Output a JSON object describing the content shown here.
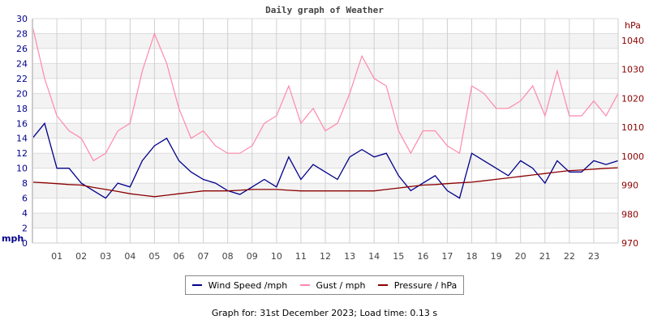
{
  "chart_data": {
    "type": "line",
    "title": "Daily graph of Weather",
    "x_tick_labels": [
      "01",
      "02",
      "03",
      "04",
      "05",
      "06",
      "07",
      "08",
      "09",
      "10",
      "11",
      "12",
      "13",
      "14",
      "15",
      "16",
      "17",
      "18",
      "19",
      "20",
      "21",
      "22",
      "23"
    ],
    "xlim_hours": [
      0,
      24
    ],
    "y_left": {
      "label": "mph",
      "ylim": [
        0,
        30
      ],
      "ticks": [
        0,
        2,
        4,
        6,
        8,
        10,
        12,
        14,
        16,
        18,
        20,
        22,
        24,
        26,
        28,
        30
      ],
      "color": "#00008b"
    },
    "y_right": {
      "label": "hPa",
      "ylim": [
        970,
        1047.5
      ],
      "ticks": [
        970,
        980,
        990,
        1000,
        1010,
        1020,
        1030,
        1040
      ],
      "color": "#8b0000"
    },
    "grid": true,
    "hours": [
      0,
      0.5,
      1,
      1.5,
      2,
      2.5,
      3,
      3.5,
      4,
      4.5,
      5,
      5.5,
      6,
      6.5,
      7,
      7.5,
      8,
      8.5,
      9,
      9.5,
      10,
      10.5,
      11,
      11.5,
      12,
      12.5,
      13,
      13.5,
      14,
      14.5,
      15,
      15.5,
      16,
      16.5,
      17,
      17.5,
      18,
      18.5,
      19,
      19.5,
      20,
      20.5,
      21,
      21.5,
      22,
      22.5,
      23,
      23.5,
      24
    ],
    "series": [
      {
        "name": "Wind Speed /mph",
        "axis": "left",
        "color": "#00008b",
        "values": [
          14,
          16,
          10,
          10,
          8,
          7,
          6,
          8,
          7.5,
          11,
          13,
          14,
          11,
          9.5,
          8.5,
          8,
          7,
          6.5,
          7.5,
          8.5,
          7.5,
          11.5,
          8.5,
          10.5,
          9.5,
          8.5,
          11.5,
          12.5,
          11.5,
          12,
          9,
          7,
          8,
          9,
          7,
          6,
          12,
          11,
          10,
          9,
          11,
          10,
          8,
          11,
          9.5,
          9.5,
          11,
          10.5,
          11
        ]
      },
      {
        "name": "Gust / mph",
        "axis": "left",
        "color": "#ff88aa",
        "values": [
          29,
          22,
          17,
          15,
          14,
          11,
          12,
          15,
          16,
          23,
          28,
          24,
          18,
          14,
          15,
          13,
          12,
          12,
          13,
          16,
          17,
          21,
          16,
          18,
          15,
          16,
          20,
          25,
          22,
          21,
          15,
          12,
          15,
          15,
          13,
          12,
          21,
          20,
          18,
          18,
          19,
          21,
          17,
          23,
          17,
          17,
          19,
          17,
          20
        ]
      },
      {
        "name": "Pressure / hPa",
        "axis": "right",
        "color": "#8b0000",
        "values": [
          991,
          990.8,
          990.5,
          990.2,
          990,
          989.2,
          988.5,
          987.8,
          987,
          986.5,
          986,
          986.5,
          987,
          987.5,
          988,
          988,
          988,
          988.2,
          988.5,
          988.5,
          988.5,
          988.2,
          988,
          988,
          988,
          988,
          988,
          988,
          988,
          988.5,
          989,
          989.5,
          990,
          990.2,
          990.5,
          990.8,
          991,
          991.5,
          992,
          992.5,
          993,
          993.5,
          994,
          994.5,
          995,
          995.2,
          995.5,
          995.8,
          996
        ]
      }
    ],
    "legend": "bottom"
  },
  "footer": "Graph for: 31st December 2023; Load time: 0.13 s"
}
